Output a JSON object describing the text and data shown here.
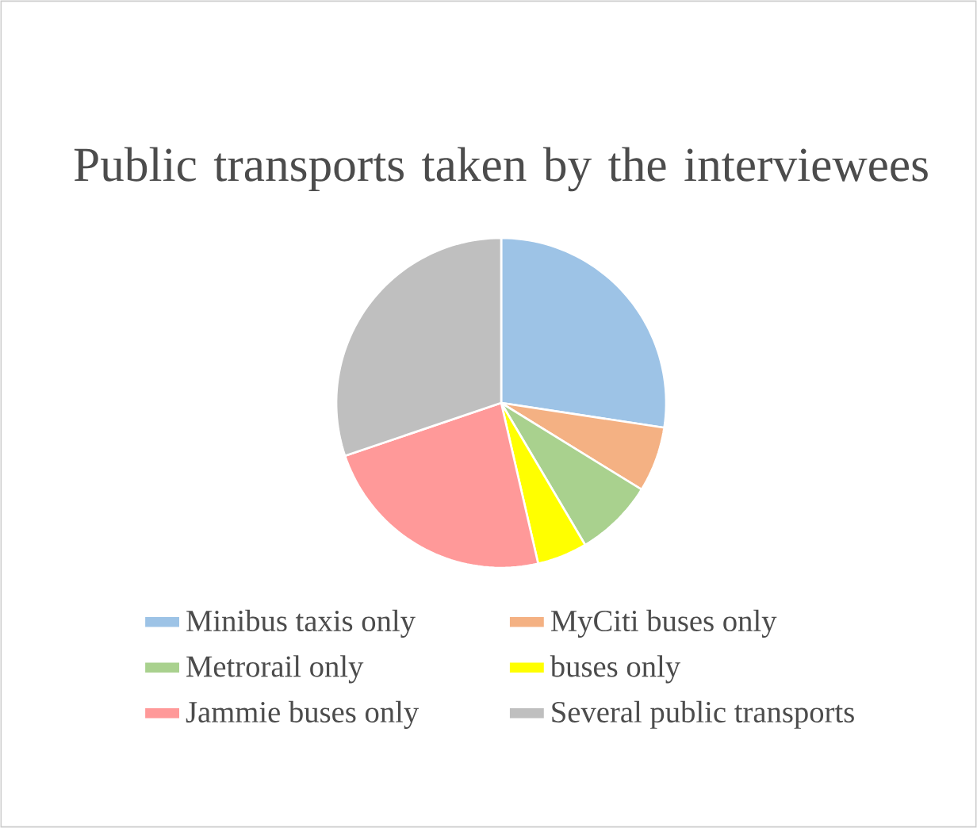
{
  "chart_data": {
    "type": "pie",
    "title": "Public transports taken by the interviewees",
    "categories": [
      "Minibus taxis only",
      "MyCiti buses only",
      "Metrorail only",
      "buses only",
      "Jammie buses only",
      "Several public transports"
    ],
    "values": [
      27.4,
      6.4,
      7.7,
      4.9,
      23.4,
      30.2
    ],
    "colors": [
      "#9dc3e6",
      "#f4b183",
      "#a9d18e",
      "#ffff00",
      "#ff9999",
      "#bfbfbf"
    ],
    "legend": "bottom"
  }
}
